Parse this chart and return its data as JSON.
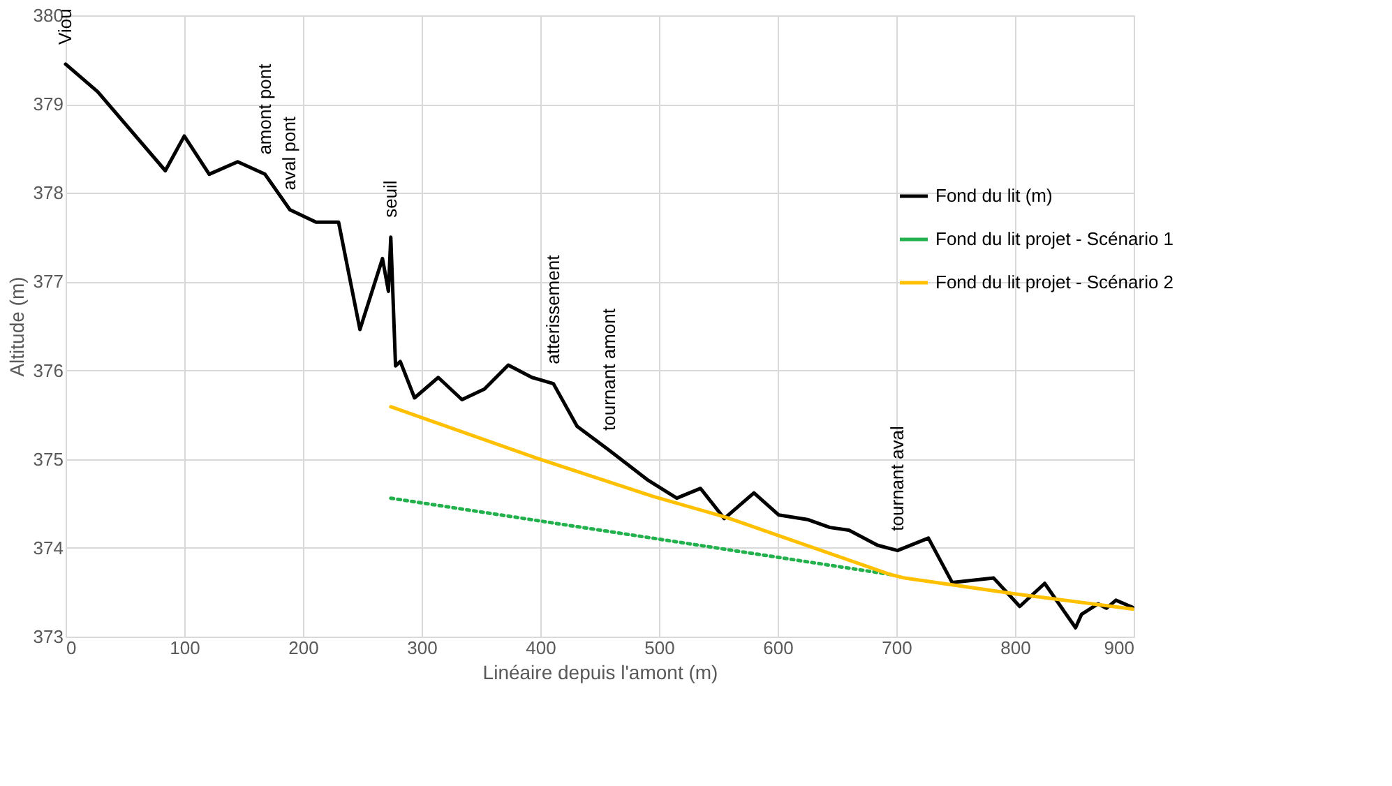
{
  "chart_data": {
    "type": "line",
    "xlabel": "Linéaire depuis l'amont (m)",
    "ylabel": "Altitude (m)",
    "xlim": [
      0,
      900
    ],
    "xticks": [
      0,
      100,
      200,
      300,
      400,
      500,
      600,
      700,
      800,
      900
    ],
    "ylim": [
      373,
      380
    ],
    "yticks": [
      373,
      374,
      375,
      376,
      377,
      378,
      379,
      380
    ],
    "grid": true,
    "legend": "top right",
    "marker": "none",
    "series": [
      {
        "name": "Fond du lit (m)",
        "color": "#000000",
        "line_style": "solid",
        "x": [
          0,
          27,
          84,
          100,
          121,
          145,
          168,
          189,
          211,
          230,
          248,
          267,
          272,
          274,
          278,
          282,
          294,
          314,
          334,
          353,
          373,
          393,
          411,
          431,
          458,
          491,
          515,
          535,
          555,
          580,
          601,
          625,
          644,
          660,
          684,
          701,
          727,
          747,
          782,
          804,
          825,
          851,
          856,
          870,
          877,
          885,
          899
        ],
        "values": [
          379.45,
          379.14,
          378.25,
          378.64,
          378.21,
          378.35,
          378.21,
          377.81,
          377.67,
          377.67,
          376.46,
          377.26,
          376.89,
          377.5,
          376.05,
          376.1,
          375.69,
          375.92,
          375.67,
          375.79,
          376.06,
          375.92,
          375.85,
          375.37,
          375.1,
          374.76,
          374.56,
          374.67,
          374.33,
          374.62,
          374.37,
          374.32,
          374.23,
          374.2,
          374.03,
          373.97,
          374.11,
          373.61,
          373.66,
          373.34,
          373.6,
          373.1,
          373.25,
          373.37,
          373.32,
          373.41,
          373.33
        ]
      },
      {
        "name": "Fond du lit projet - Scénario 1",
        "color": "#22b14c",
        "line_style": "dotted",
        "x": [
          274,
          695
        ],
        "values": [
          374.56,
          373.7
        ]
      },
      {
        "name": "Fond du lit projet - Scénario 2",
        "color": "#ffc000",
        "line_style": "solid",
        "x": [
          274,
          397,
          495,
          555,
          566,
          695,
          707,
          801,
          899
        ],
        "values": [
          375.59,
          375.01,
          374.58,
          374.35,
          374.3,
          373.7,
          373.66,
          373.48,
          373.31
        ]
      }
    ],
    "annotations": [
      {
        "text": "Viou",
        "x": 0,
        "y": 379.45
      },
      {
        "text": "amont pont",
        "x": 168,
        "y": 378.21
      },
      {
        "text": "aval pont",
        "x": 189,
        "y": 377.81
      },
      {
        "text": "seuil",
        "x": 274,
        "y": 377.5
      },
      {
        "text": "atterissement",
        "x": 411,
        "y": 375.85
      },
      {
        "text": "tournant amont",
        "x": 458,
        "y": 375.1
      },
      {
        "text": "tournant aval",
        "x": 701,
        "y": 373.97
      }
    ]
  }
}
